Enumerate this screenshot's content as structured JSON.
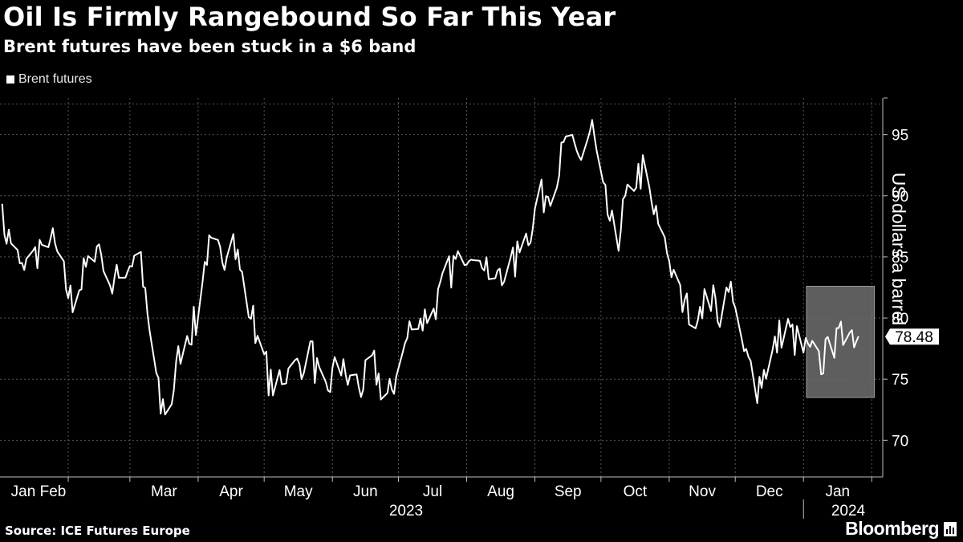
{
  "title": "Oil Is Firmly Rangebound So Far This Year",
  "subtitle": "Brent futures have been stuck in a $6 band",
  "source": "Source: ICE Futures Europe",
  "brand": "Bloomberg",
  "chart_data": {
    "type": "line",
    "legend": [
      "Brent futures"
    ],
    "ylabel": "US dollars a barrel",
    "ylim": [
      67,
      98
    ],
    "yticks": [
      70,
      75,
      80,
      85,
      90,
      95
    ],
    "grid": true,
    "legend_position": "top-left",
    "x_month_labels": [
      "Jan",
      "Feb",
      "Mar",
      "Apr",
      "May",
      "Jun",
      "Jul",
      "Aug",
      "Sep",
      "Oct",
      "Nov",
      "Dec",
      "Jan"
    ],
    "x_year_labels": [
      "2023",
      "2024"
    ],
    "last_value_label": "78.48",
    "highlight_band": {
      "from": "2024-01-02",
      "to": "2024-01-31",
      "ymin": 73.5,
      "ymax": 82.6
    },
    "series": [
      {
        "name": "Brent futures",
        "x": [
          "2023-01-01",
          "2023-01-06",
          "2023-01-12",
          "2023-01-18",
          "2023-01-23",
          "2023-01-28",
          "2023-02-03",
          "2023-02-09",
          "2023-02-15",
          "2023-02-21",
          "2023-02-27",
          "2023-03-05",
          "2023-03-10",
          "2023-03-15",
          "2023-03-20",
          "2023-03-25",
          "2023-03-31",
          "2023-04-05",
          "2023-04-11",
          "2023-04-17",
          "2023-04-23",
          "2023-04-29",
          "2023-05-04",
          "2023-05-10",
          "2023-05-16",
          "2023-05-22",
          "2023-05-28",
          "2023-06-03",
          "2023-06-08",
          "2023-06-14",
          "2023-06-20",
          "2023-06-26",
          "2023-07-01",
          "2023-07-07",
          "2023-07-13",
          "2023-07-19",
          "2023-07-25",
          "2023-07-31",
          "2023-08-05",
          "2023-08-11",
          "2023-08-17",
          "2023-08-23",
          "2023-08-29",
          "2023-09-03",
          "2023-09-09",
          "2023-09-15",
          "2023-09-21",
          "2023-09-27",
          "2023-10-02",
          "2023-10-08",
          "2023-10-14",
          "2023-10-20",
          "2023-10-26",
          "2023-11-01",
          "2023-11-07",
          "2023-11-12",
          "2023-11-18",
          "2023-11-24",
          "2023-11-30",
          "2023-12-05",
          "2023-12-11",
          "2023-12-17",
          "2023-12-23",
          "2023-12-29",
          "2024-01-03",
          "2024-01-09",
          "2024-01-15",
          "2024-01-21",
          "2024-01-27"
        ],
        "values": [
          88.5,
          86.0,
          83.5,
          85.5,
          87.0,
          84.5,
          81.0,
          84.0,
          86.0,
          82.5,
          84.0,
          85.5,
          78.5,
          72.5,
          73.5,
          78.5,
          79.5,
          85.5,
          85.0,
          86.5,
          81.5,
          78.0,
          74.5,
          75.5,
          76.0,
          77.5,
          73.5,
          76.0,
          75.0,
          74.5,
          76.0,
          73.0,
          76.0,
          79.5,
          80.0,
          81.5,
          84.0,
          85.5,
          86.5,
          84.0,
          83.0,
          84.5,
          87.0,
          89.5,
          91.0,
          94.0,
          93.0,
          95.5,
          90.0,
          86.0,
          91.0,
          92.0,
          88.0,
          85.0,
          81.0,
          80.5,
          82.0,
          80.5,
          82.5,
          77.0,
          74.5,
          76.5,
          79.5,
          78.0,
          77.0,
          76.5,
          77.5,
          79.0,
          78.48
        ]
      }
    ]
  }
}
